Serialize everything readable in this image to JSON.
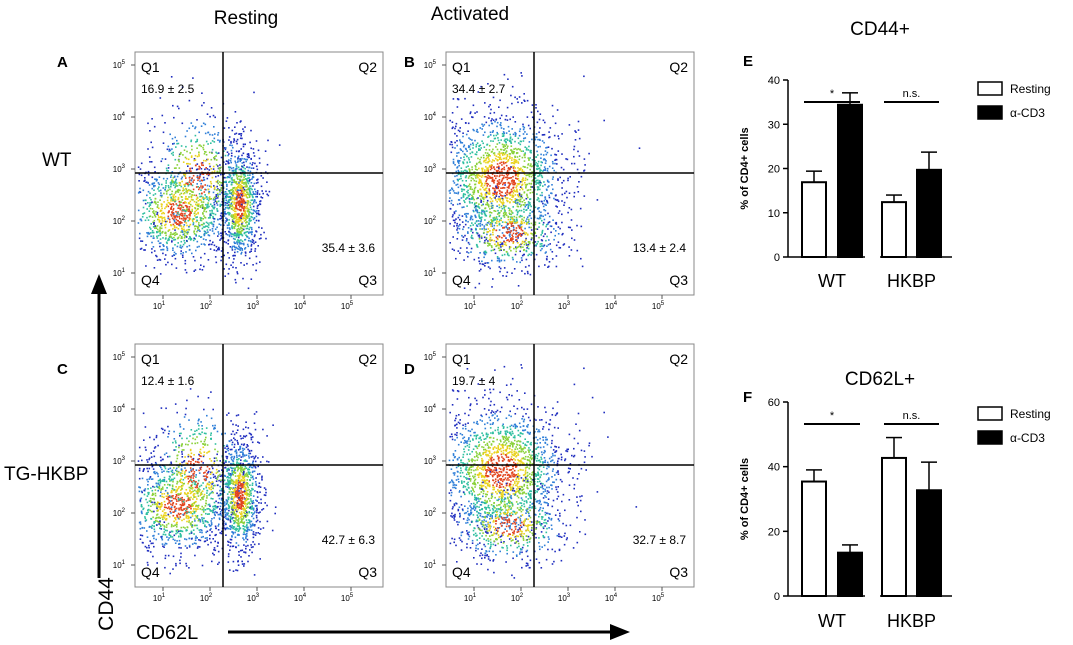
{
  "column_titles": {
    "resting": "Resting",
    "activated": "Activated"
  },
  "row_labels": {
    "wt": "WT",
    "tg": "TG-HKBP"
  },
  "axes": {
    "y_label": "CD44",
    "x_label": "CD62L"
  },
  "quadrant_labels": [
    "Q1",
    "Q2",
    "Q3",
    "Q4"
  ],
  "flow_tick_labels": [
    "10",
    "10",
    "10",
    "10",
    "10"
  ],
  "flow_tick_exponents": [
    "1",
    "2",
    "3",
    "4",
    "5"
  ],
  "density_colors": [
    "#1f2dbf",
    "#2f7fd8",
    "#2fbfa0",
    "#8ad13a",
    "#e9d21c",
    "#e2441d"
  ],
  "flow_panels": [
    {
      "letter": "A",
      "q1_value": "16.9 ± 2.5",
      "q3_value": "35.4 ± 3.6",
      "condition": "resting"
    },
    {
      "letter": "B",
      "q1_value": "34.4 ± 2.7",
      "q3_value": "13.4 ± 2.4",
      "condition": "activated"
    },
    {
      "letter": "C",
      "q1_value": "12.4 ± 1.6",
      "q3_value": "42.7 ± 6.3",
      "condition": "resting"
    },
    {
      "letter": "D",
      "q1_value": "19.7 ± 4",
      "q3_value": "32.7 ± 8.7",
      "condition": "activated"
    }
  ],
  "chart_data": [
    {
      "type": "bar",
      "panel_letter": "E",
      "title": "CD44+",
      "ylabel": "% of CD4+ cells",
      "xlabel": "",
      "ylim": [
        0,
        40
      ],
      "yticks": [
        0,
        10,
        20,
        30,
        40
      ],
      "categories": [
        "WT",
        "HKBP"
      ],
      "series": [
        {
          "name": "Resting",
          "fill": "#ffffff",
          "values": [
            16.9,
            12.4
          ],
          "errors": [
            2.5,
            1.6
          ]
        },
        {
          "name": "α-CD3",
          "fill": "#000000",
          "values": [
            34.4,
            19.7
          ],
          "errors": [
            2.7,
            4.0
          ]
        }
      ],
      "significance": [
        "*",
        "n.s."
      ],
      "legend": "top-right"
    },
    {
      "type": "bar",
      "panel_letter": "F",
      "title": "CD62L+",
      "ylabel": "% of CD4+ cells",
      "xlabel": "",
      "ylim": [
        0,
        60
      ],
      "yticks": [
        0,
        20,
        40,
        60
      ],
      "categories": [
        "WT",
        "HKBP"
      ],
      "series": [
        {
          "name": "Resting",
          "fill": "#ffffff",
          "values": [
            35.4,
            42.7
          ],
          "errors": [
            3.6,
            6.3
          ]
        },
        {
          "name": "α-CD3",
          "fill": "#000000",
          "values": [
            13.4,
            32.7
          ],
          "errors": [
            2.4,
            8.7
          ]
        }
      ],
      "significance": [
        "*",
        "n.s."
      ],
      "legend": "top-right"
    }
  ]
}
